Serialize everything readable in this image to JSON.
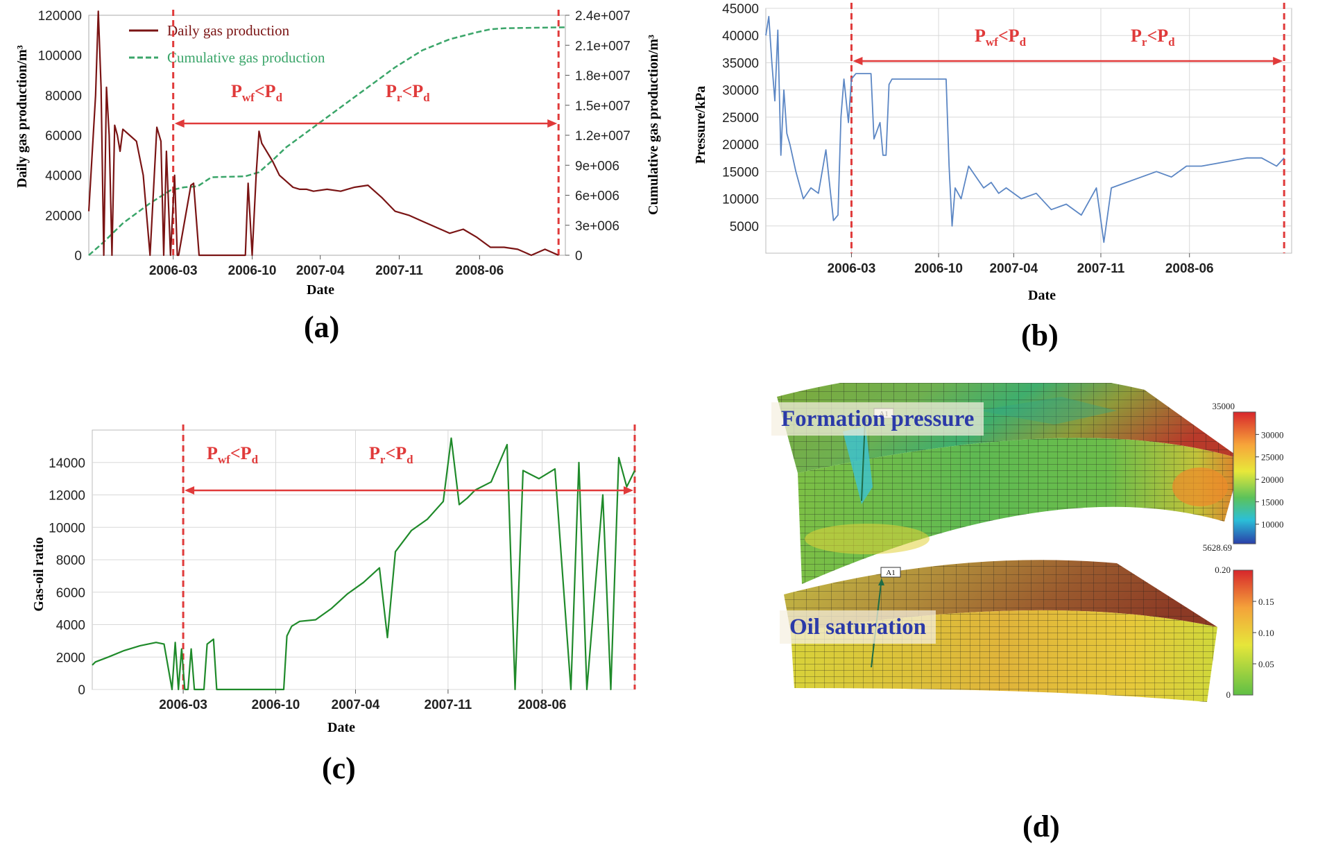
{
  "colors": {
    "daily": "#7a1414",
    "cumulative": "#3aa569",
    "pressure": "#5b86c4",
    "gor": "#1f8a2a",
    "marker": "#e03a3a",
    "axis": "#222222"
  },
  "region_labels": {
    "pwf": {
      "P": "P",
      "sub": "wf",
      "lt": "<",
      "P2": "P",
      "sub2": "d"
    },
    "pr": {
      "P": "P",
      "sub": "r",
      "lt": "<",
      "P2": "P",
      "sub2": "d"
    }
  },
  "chart_data": [
    {
      "panel": "(a)",
      "type": "line",
      "title": "",
      "xlabel": "Date",
      "ylabel": "Daily gas production/m³",
      "y2label": "Cumulative gas production/m³",
      "ylim": [
        0,
        120000
      ],
      "y2lim": [
        0,
        24000000
      ],
      "yticks": [
        "0",
        "20000",
        "40000",
        "60000",
        "80000",
        "100000",
        "120000"
      ],
      "y2ticks": [
        "0",
        "3e+006",
        "6e+006",
        "9e+006",
        "1.2e+007",
        "1.5e+007",
        "1.8e+007",
        "2.1e+007",
        "2.4e+007"
      ],
      "xticks": [
        "2006-03",
        "2006-10",
        "2007-04",
        "2007-11",
        "2008-06"
      ],
      "xlim": [
        2005.55,
        2009.05
      ],
      "legend": [
        "Daily gas production",
        "Cumulative gas production"
      ],
      "legend_position": "top-left",
      "marker_lines": [
        2006.17,
        2009.0
      ],
      "series": [
        {
          "name": "Daily gas production",
          "x": [
            2005.55,
            2005.6,
            2005.62,
            2005.64,
            2005.66,
            2005.68,
            2005.7,
            2005.72,
            2005.74,
            2005.76,
            2005.78,
            2005.8,
            2005.85,
            2005.9,
            2005.95,
            2006.0,
            2006.05,
            2006.08,
            2006.1,
            2006.12,
            2006.15,
            2006.18,
            2006.2,
            2006.21,
            2006.3,
            2006.32,
            2006.36,
            2006.4,
            2006.42,
            2006.44,
            2006.7,
            2006.72,
            2006.75,
            2006.78,
            2006.8,
            2006.82,
            2006.9,
            2006.95,
            2007.0,
            2007.05,
            2007.1,
            2007.15,
            2007.2,
            2007.3,
            2007.4,
            2007.5,
            2007.6,
            2007.7,
            2007.8,
            2007.9,
            2008.0,
            2008.1,
            2008.2,
            2008.3,
            2008.4,
            2008.5,
            2008.6,
            2008.7,
            2008.8,
            2008.9,
            2009.0
          ],
          "values": [
            22000,
            80000,
            122000,
            84000,
            0,
            84000,
            60000,
            0,
            65000,
            60000,
            52000,
            63000,
            60000,
            57000,
            40000,
            0,
            64000,
            57000,
            0,
            52000,
            0,
            40000,
            0,
            0,
            35000,
            36000,
            0,
            0,
            0,
            0,
            0,
            36000,
            0,
            41000,
            62000,
            56000,
            47000,
            40000,
            37000,
            34000,
            33000,
            33000,
            32000,
            33000,
            32000,
            34000,
            35000,
            29000,
            22000,
            20000,
            17000,
            14000,
            11000,
            13000,
            9000,
            4000,
            4000,
            3000,
            0,
            3000,
            0
          ]
        },
        {
          "name": "Cumulative gas production",
          "x": [
            2005.55,
            2005.65,
            2005.8,
            2006.0,
            2006.15,
            2006.25,
            2006.35,
            2006.45,
            2006.7,
            2006.8,
            2006.9,
            2007.0,
            2007.2,
            2007.4,
            2007.6,
            2007.8,
            2008.0,
            2008.2,
            2008.4,
            2008.5,
            2008.6,
            2009.05
          ],
          "values": [
            0,
            1200000,
            3200000,
            5200000,
            6500000,
            6800000,
            6900000,
            7800000,
            7900000,
            8300000,
            9500000,
            10800000,
            12800000,
            14800000,
            16800000,
            18800000,
            20500000,
            21600000,
            22300000,
            22600000,
            22700000,
            22800000
          ]
        }
      ]
    },
    {
      "panel": "(b)",
      "type": "line",
      "title": "",
      "xlabel": "Date",
      "ylabel": "Pressure/kPa",
      "ylim": [
        0,
        45000
      ],
      "yticks": [
        "5000",
        "10000",
        "15000",
        "20000",
        "25000",
        "30000",
        "35000",
        "40000",
        "45000"
      ],
      "xticks": [
        "2006-03",
        "2006-10",
        "2007-04",
        "2007-11",
        "2008-06"
      ],
      "xlim": [
        2005.6,
        2009.1
      ],
      "marker_lines": [
        2006.17,
        2009.05
      ],
      "series": [
        {
          "name": "Pressure",
          "x": [
            2005.6,
            2005.62,
            2005.64,
            2005.66,
            2005.68,
            2005.7,
            2005.72,
            2005.74,
            2005.76,
            2005.8,
            2005.85,
            2005.9,
            2005.95,
            2006.0,
            2006.05,
            2006.08,
            2006.1,
            2006.12,
            2006.15,
            2006.17,
            2006.2,
            2006.25,
            2006.3,
            2006.32,
            2006.36,
            2006.38,
            2006.4,
            2006.42,
            2006.44,
            2006.5,
            2006.55,
            2006.8,
            2006.82,
            2006.84,
            2006.86,
            2006.9,
            2006.95,
            2007.0,
            2007.05,
            2007.1,
            2007.15,
            2007.2,
            2007.3,
            2007.4,
            2007.5,
            2007.6,
            2007.7,
            2007.8,
            2007.85,
            2007.9,
            2008.0,
            2008.1,
            2008.2,
            2008.3,
            2008.4,
            2008.5,
            2008.6,
            2008.7,
            2008.8,
            2008.9,
            2009.0,
            2009.05
          ],
          "values": [
            40000,
            43500,
            35000,
            28000,
            41000,
            18000,
            30000,
            22000,
            20000,
            15000,
            10000,
            12000,
            11000,
            19000,
            6000,
            7000,
            25000,
            32000,
            24000,
            32000,
            33000,
            33000,
            33000,
            21000,
            24000,
            18000,
            18000,
            31000,
            32000,
            32000,
            32000,
            32000,
            16000,
            5000,
            12000,
            10000,
            16000,
            14000,
            12000,
            13000,
            11000,
            12000,
            10000,
            11000,
            8000,
            9000,
            7000,
            12000,
            2000,
            12000,
            13000,
            14000,
            15000,
            14000,
            16000,
            16000,
            16500,
            17000,
            17500,
            17500,
            16000,
            17500
          ]
        }
      ]
    },
    {
      "panel": "(c)",
      "type": "line",
      "title": "",
      "xlabel": "Date",
      "ylabel": "Gas-oil ratio",
      "ylim": [
        0,
        16000
      ],
      "yticks": [
        "0",
        "2000",
        "4000",
        "6000",
        "8000",
        "10000",
        "12000",
        "14000"
      ],
      "xticks": [
        "2006-03",
        "2006-10",
        "2007-04",
        "2007-11",
        "2008-06"
      ],
      "xlim": [
        2005.6,
        2009.0
      ],
      "marker_lines": [
        2006.17,
        2009.0
      ],
      "series": [
        {
          "name": "Gas-oil ratio",
          "x": [
            2005.6,
            2005.62,
            2005.7,
            2005.8,
            2005.9,
            2006.0,
            2006.05,
            2006.1,
            2006.12,
            2006.14,
            2006.16,
            2006.18,
            2006.2,
            2006.22,
            2006.24,
            2006.3,
            2006.32,
            2006.36,
            2006.38,
            2006.4,
            2006.42,
            2006.48,
            2006.5,
            2006.8,
            2006.82,
            2006.85,
            2006.9,
            2007.0,
            2007.1,
            2007.2,
            2007.3,
            2007.4,
            2007.45,
            2007.5,
            2007.6,
            2007.7,
            2007.8,
            2007.85,
            2007.9,
            2007.95,
            2008.0,
            2008.1,
            2008.2,
            2008.25,
            2008.3,
            2008.4,
            2008.5,
            2008.6,
            2008.65,
            2008.7,
            2008.8,
            2008.85,
            2008.9,
            2008.95,
            2009.0
          ],
          "values": [
            1500,
            1700,
            2000,
            2400,
            2700,
            2900,
            2800,
            0,
            2900,
            0,
            2500,
            0,
            0,
            2500,
            0,
            0,
            2800,
            3100,
            0,
            0,
            0,
            0,
            0,
            0,
            3300,
            3900,
            4200,
            4300,
            5000,
            5900,
            6600,
            7500,
            3200,
            8500,
            9800,
            10500,
            11600,
            15500,
            11400,
            11800,
            12300,
            12800,
            15100,
            0,
            13500,
            13000,
            13600,
            0,
            14000,
            0,
            12000,
            0,
            14300,
            12500,
            13500
          ]
        }
      ]
    }
  ],
  "panel_d": {
    "formation_title": "Formation pressure",
    "saturation_title": "Oil saturation",
    "well_label": "A1",
    "pressure_colorbar": {
      "max_label": "35000",
      "ticks": [
        "30000",
        "25000",
        "20000",
        "15000",
        "10000"
      ],
      "min_label": "5628.69"
    },
    "saturation_colorbar": {
      "max_label": "0.20",
      "ticks": [
        "0.15",
        "0.10",
        "0.05"
      ],
      "min_label": "0"
    }
  },
  "panel_labels": {
    "a": "(a)",
    "b": "(b)",
    "c": "(c)",
    "d": "(d)"
  }
}
